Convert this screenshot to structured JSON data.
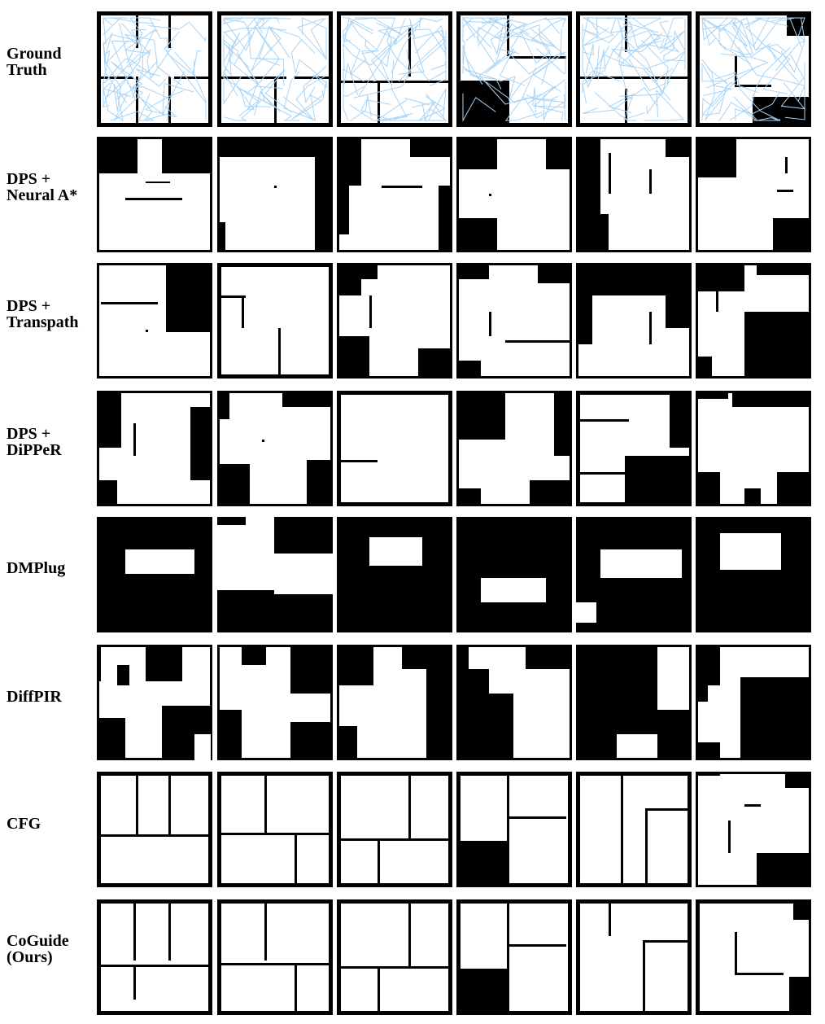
{
  "rows": [
    {
      "label": "Ground\nTruth"
    },
    {
      "label": "DPS +\nNeural A*"
    },
    {
      "label": "DPS +\nTranspath"
    },
    {
      "label": "DPS +\nDiPPeR"
    },
    {
      "label": "DMPlug"
    },
    {
      "label": "DiffPIR"
    },
    {
      "label": "CFG"
    },
    {
      "label": "CoGuide\n(Ours)"
    }
  ],
  "colors": {
    "free": "#ffffff",
    "obstacle": "#000000",
    "path": "#a8d4f5"
  }
}
